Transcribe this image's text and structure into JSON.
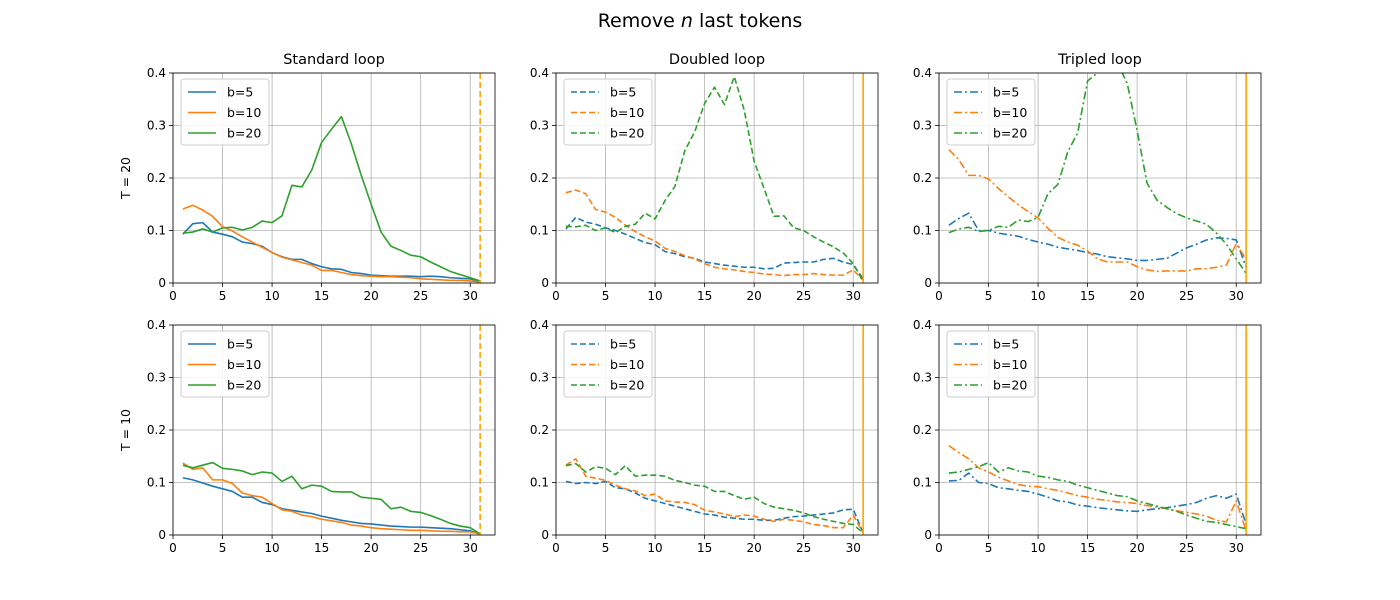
{
  "suptitle": {
    "prefix": "Remove ",
    "var": "n",
    "suffix": " last tokens"
  },
  "colors": {
    "b5": "#1f77b4",
    "b10": "#ff7f0e",
    "b20": "#2ca02c",
    "vline": "#ffa500",
    "grid": "#b0b0b0"
  },
  "chart_data": [
    {
      "type": "line",
      "title": "Standard loop",
      "ylabel": "T = 20",
      "linestyle": "solid",
      "xlim": [
        0,
        32.5
      ],
      "ylim": [
        0,
        0.4
      ],
      "xticks": [
        0,
        5,
        10,
        15,
        20,
        25,
        30
      ],
      "yticks": [
        0,
        0.1,
        0.2,
        0.3,
        0.4
      ],
      "vline": {
        "x": 31,
        "style": "dashed"
      },
      "legend": "top-left",
      "grid": true,
      "x": [
        1,
        2,
        3,
        4,
        5,
        6,
        7,
        8,
        9,
        10,
        11,
        12,
        13,
        14,
        15,
        16,
        17,
        18,
        19,
        20,
        21,
        22,
        23,
        24,
        25,
        26,
        27,
        28,
        29,
        30,
        31
      ],
      "series": [
        {
          "name": "b=5",
          "values": [
            0.093,
            0.113,
            0.115,
            0.097,
            0.093,
            0.088,
            0.078,
            0.075,
            0.07,
            0.058,
            0.05,
            0.045,
            0.045,
            0.037,
            0.031,
            0.027,
            0.026,
            0.02,
            0.018,
            0.015,
            0.014,
            0.013,
            0.013,
            0.013,
            0.012,
            0.013,
            0.012,
            0.01,
            0.009,
            0.008,
            0.003
          ]
        },
        {
          "name": "b=10",
          "values": [
            0.141,
            0.148,
            0.139,
            0.127,
            0.107,
            0.099,
            0.088,
            0.078,
            0.068,
            0.058,
            0.049,
            0.044,
            0.039,
            0.034,
            0.024,
            0.024,
            0.02,
            0.016,
            0.014,
            0.013,
            0.012,
            0.012,
            0.011,
            0.01,
            0.008,
            0.007,
            0.006,
            0.005,
            0.005,
            0.004,
            0.002
          ]
        },
        {
          "name": "b=20",
          "values": [
            0.095,
            0.097,
            0.103,
            0.097,
            0.105,
            0.106,
            0.101,
            0.106,
            0.118,
            0.115,
            0.128,
            0.186,
            0.183,
            0.215,
            0.268,
            0.293,
            0.317,
            0.265,
            0.205,
            0.15,
            0.097,
            0.07,
            0.062,
            0.053,
            0.05,
            0.04,
            0.031,
            0.022,
            0.016,
            0.01,
            0.004
          ]
        }
      ]
    },
    {
      "type": "line",
      "title": "Doubled loop",
      "ylabel": "",
      "linestyle": "dashed",
      "xlim": [
        0,
        32.5
      ],
      "ylim": [
        0,
        0.4
      ],
      "xticks": [
        0,
        5,
        10,
        15,
        20,
        25,
        30
      ],
      "yticks": [
        0,
        0.1,
        0.2,
        0.3,
        0.4
      ],
      "vline": {
        "x": 31,
        "style": "solid"
      },
      "legend": "top-left",
      "grid": true,
      "x": [
        1,
        2,
        3,
        4,
        5,
        6,
        7,
        8,
        9,
        10,
        11,
        12,
        13,
        14,
        15,
        16,
        17,
        18,
        19,
        20,
        21,
        22,
        23,
        24,
        25,
        26,
        27,
        28,
        29,
        30,
        31
      ],
      "series": [
        {
          "name": "b=5",
          "values": [
            0.103,
            0.125,
            0.116,
            0.112,
            0.105,
            0.1,
            0.093,
            0.085,
            0.077,
            0.073,
            0.06,
            0.056,
            0.05,
            0.047,
            0.04,
            0.037,
            0.034,
            0.032,
            0.03,
            0.03,
            0.027,
            0.028,
            0.038,
            0.039,
            0.04,
            0.04,
            0.045,
            0.047,
            0.04,
            0.035,
            0.008
          ]
        },
        {
          "name": "b=10",
          "values": [
            0.172,
            0.177,
            0.17,
            0.14,
            0.135,
            0.125,
            0.11,
            0.098,
            0.088,
            0.08,
            0.066,
            0.06,
            0.052,
            0.046,
            0.037,
            0.03,
            0.027,
            0.025,
            0.022,
            0.02,
            0.017,
            0.016,
            0.014,
            0.016,
            0.016,
            0.018,
            0.016,
            0.015,
            0.015,
            0.025,
            0.005
          ]
        },
        {
          "name": "b=20",
          "values": [
            0.108,
            0.107,
            0.11,
            0.1,
            0.105,
            0.096,
            0.108,
            0.112,
            0.133,
            0.122,
            0.157,
            0.184,
            0.252,
            0.288,
            0.342,
            0.373,
            0.34,
            0.393,
            0.329,
            0.232,
            0.18,
            0.127,
            0.128,
            0.105,
            0.1,
            0.088,
            0.078,
            0.069,
            0.057,
            0.037,
            0.003
          ]
        }
      ]
    },
    {
      "type": "line",
      "title": "Tripled loop",
      "ylabel": "",
      "linestyle": "dashdot",
      "xlim": [
        0,
        32.5
      ],
      "ylim": [
        0,
        0.4
      ],
      "xticks": [
        0,
        5,
        10,
        15,
        20,
        25,
        30
      ],
      "yticks": [
        0,
        0.1,
        0.2,
        0.3,
        0.4
      ],
      "vline": {
        "x": 31,
        "style": "solid"
      },
      "legend": "top-left",
      "grid": true,
      "x": [
        1,
        2,
        3,
        4,
        5,
        6,
        7,
        8,
        9,
        10,
        11,
        12,
        13,
        14,
        15,
        16,
        17,
        18,
        19,
        20,
        21,
        22,
        23,
        24,
        25,
        26,
        27,
        28,
        29,
        30,
        31
      ],
      "series": [
        {
          "name": "b=5",
          "values": [
            0.11,
            0.123,
            0.133,
            0.1,
            0.1,
            0.095,
            0.092,
            0.089,
            0.083,
            0.078,
            0.074,
            0.068,
            0.065,
            0.062,
            0.058,
            0.055,
            0.05,
            0.048,
            0.046,
            0.043,
            0.043,
            0.045,
            0.047,
            0.057,
            0.067,
            0.074,
            0.082,
            0.086,
            0.085,
            0.082,
            0.03
          ]
        },
        {
          "name": "b=10",
          "values": [
            0.254,
            0.235,
            0.205,
            0.205,
            0.198,
            0.18,
            0.164,
            0.149,
            0.136,
            0.124,
            0.104,
            0.087,
            0.078,
            0.072,
            0.061,
            0.046,
            0.04,
            0.04,
            0.04,
            0.031,
            0.025,
            0.022,
            0.023,
            0.023,
            0.023,
            0.027,
            0.027,
            0.03,
            0.034,
            0.075,
            0.045
          ]
        },
        {
          "name": "b=20",
          "values": [
            0.096,
            0.103,
            0.106,
            0.098,
            0.1,
            0.108,
            0.106,
            0.12,
            0.117,
            0.125,
            0.17,
            0.188,
            0.25,
            0.286,
            0.385,
            0.4,
            0.415,
            0.42,
            0.38,
            0.29,
            0.19,
            0.158,
            0.144,
            0.132,
            0.124,
            0.118,
            0.112,
            0.095,
            0.074,
            0.046,
            0.018
          ]
        }
      ]
    },
    {
      "type": "line",
      "title": "",
      "ylabel": "T = 10",
      "linestyle": "solid",
      "xlim": [
        0,
        32.5
      ],
      "ylim": [
        0,
        0.4
      ],
      "xticks": [
        0,
        5,
        10,
        15,
        20,
        25,
        30
      ],
      "yticks": [
        0,
        0.1,
        0.2,
        0.3,
        0.4
      ],
      "vline": {
        "x": 31,
        "style": "dashed"
      },
      "legend": "top-left",
      "grid": true,
      "x": [
        1,
        2,
        3,
        4,
        5,
        6,
        7,
        8,
        9,
        10,
        11,
        12,
        13,
        14,
        15,
        16,
        17,
        18,
        19,
        20,
        21,
        22,
        23,
        24,
        25,
        26,
        27,
        28,
        29,
        30,
        31
      ],
      "series": [
        {
          "name": "b=5",
          "values": [
            0.109,
            0.105,
            0.099,
            0.093,
            0.088,
            0.083,
            0.072,
            0.072,
            0.062,
            0.058,
            0.05,
            0.047,
            0.044,
            0.041,
            0.036,
            0.032,
            0.028,
            0.025,
            0.022,
            0.021,
            0.019,
            0.017,
            0.016,
            0.015,
            0.015,
            0.014,
            0.013,
            0.012,
            0.01,
            0.008,
            0.002
          ]
        },
        {
          "name": "b=10",
          "values": [
            0.137,
            0.125,
            0.128,
            0.105,
            0.105,
            0.098,
            0.08,
            0.075,
            0.072,
            0.06,
            0.048,
            0.045,
            0.038,
            0.035,
            0.03,
            0.027,
            0.024,
            0.019,
            0.017,
            0.014,
            0.012,
            0.011,
            0.01,
            0.009,
            0.009,
            0.008,
            0.007,
            0.007,
            0.006,
            0.006,
            0.002
          ]
        },
        {
          "name": "b=20",
          "values": [
            0.133,
            0.128,
            0.133,
            0.138,
            0.127,
            0.125,
            0.122,
            0.115,
            0.12,
            0.118,
            0.102,
            0.112,
            0.088,
            0.095,
            0.093,
            0.083,
            0.082,
            0.082,
            0.072,
            0.07,
            0.068,
            0.05,
            0.053,
            0.045,
            0.043,
            0.037,
            0.03,
            0.022,
            0.017,
            0.014,
            0.002
          ]
        }
      ]
    },
    {
      "type": "line",
      "title": "",
      "ylabel": "",
      "linestyle": "dashed",
      "xlim": [
        0,
        32.5
      ],
      "ylim": [
        0,
        0.4
      ],
      "xticks": [
        0,
        5,
        10,
        15,
        20,
        25,
        30
      ],
      "yticks": [
        0,
        0.1,
        0.2,
        0.3,
        0.4
      ],
      "vline": {
        "x": 31,
        "style": "solid"
      },
      "legend": "top-left",
      "grid": true,
      "x": [
        1,
        2,
        3,
        4,
        5,
        6,
        7,
        8,
        9,
        10,
        11,
        12,
        13,
        14,
        15,
        16,
        17,
        18,
        19,
        20,
        21,
        22,
        23,
        24,
        25,
        26,
        27,
        28,
        29,
        30,
        31
      ],
      "series": [
        {
          "name": "b=5",
          "values": [
            0.102,
            0.098,
            0.1,
            0.098,
            0.102,
            0.09,
            0.088,
            0.08,
            0.07,
            0.065,
            0.06,
            0.055,
            0.05,
            0.045,
            0.04,
            0.038,
            0.034,
            0.032,
            0.03,
            0.03,
            0.028,
            0.028,
            0.032,
            0.035,
            0.036,
            0.038,
            0.04,
            0.042,
            0.048,
            0.049,
            0.004
          ]
        },
        {
          "name": "b=10",
          "values": [
            0.133,
            0.145,
            0.112,
            0.108,
            0.104,
            0.095,
            0.088,
            0.084,
            0.075,
            0.078,
            0.065,
            0.063,
            0.062,
            0.058,
            0.047,
            0.044,
            0.04,
            0.035,
            0.038,
            0.036,
            0.03,
            0.026,
            0.03,
            0.028,
            0.025,
            0.02,
            0.018,
            0.014,
            0.014,
            0.038,
            0.004
          ]
        },
        {
          "name": "b=20",
          "values": [
            0.132,
            0.136,
            0.12,
            0.13,
            0.127,
            0.115,
            0.132,
            0.112,
            0.114,
            0.114,
            0.112,
            0.104,
            0.1,
            0.095,
            0.093,
            0.083,
            0.083,
            0.075,
            0.068,
            0.072,
            0.06,
            0.053,
            0.05,
            0.047,
            0.042,
            0.035,
            0.03,
            0.026,
            0.022,
            0.02,
            0.004
          ]
        }
      ]
    },
    {
      "type": "line",
      "title": "",
      "ylabel": "",
      "linestyle": "dashdot",
      "xlim": [
        0,
        32.5
      ],
      "ylim": [
        0,
        0.4
      ],
      "xticks": [
        0,
        5,
        10,
        15,
        20,
        25,
        30
      ],
      "yticks": [
        0,
        0.1,
        0.2,
        0.3,
        0.4
      ],
      "vline": {
        "x": 31,
        "style": "solid"
      },
      "legend": "top-left",
      "grid": true,
      "x": [
        1,
        2,
        3,
        4,
        5,
        6,
        7,
        8,
        9,
        10,
        11,
        12,
        13,
        14,
        15,
        16,
        17,
        18,
        19,
        20,
        21,
        22,
        23,
        24,
        25,
        26,
        27,
        28,
        29,
        30,
        31
      ],
      "series": [
        {
          "name": "b=5",
          "values": [
            0.103,
            0.104,
            0.118,
            0.1,
            0.098,
            0.09,
            0.088,
            0.085,
            0.083,
            0.078,
            0.072,
            0.065,
            0.063,
            0.057,
            0.055,
            0.052,
            0.05,
            0.048,
            0.046,
            0.045,
            0.048,
            0.05,
            0.052,
            0.055,
            0.058,
            0.062,
            0.07,
            0.075,
            0.07,
            0.078,
            0.02
          ]
        },
        {
          "name": "b=10",
          "values": [
            0.17,
            0.157,
            0.145,
            0.128,
            0.12,
            0.11,
            0.103,
            0.096,
            0.093,
            0.092,
            0.088,
            0.085,
            0.08,
            0.075,
            0.072,
            0.068,
            0.066,
            0.063,
            0.062,
            0.06,
            0.056,
            0.053,
            0.05,
            0.046,
            0.043,
            0.04,
            0.036,
            0.028,
            0.025,
            0.065,
            0.008
          ]
        },
        {
          "name": "b=20",
          "values": [
            0.118,
            0.12,
            0.125,
            0.13,
            0.138,
            0.12,
            0.128,
            0.122,
            0.12,
            0.112,
            0.11,
            0.105,
            0.102,
            0.095,
            0.09,
            0.085,
            0.08,
            0.075,
            0.073,
            0.065,
            0.06,
            0.055,
            0.05,
            0.045,
            0.038,
            0.032,
            0.026,
            0.024,
            0.02,
            0.016,
            0.012
          ]
        }
      ]
    }
  ]
}
